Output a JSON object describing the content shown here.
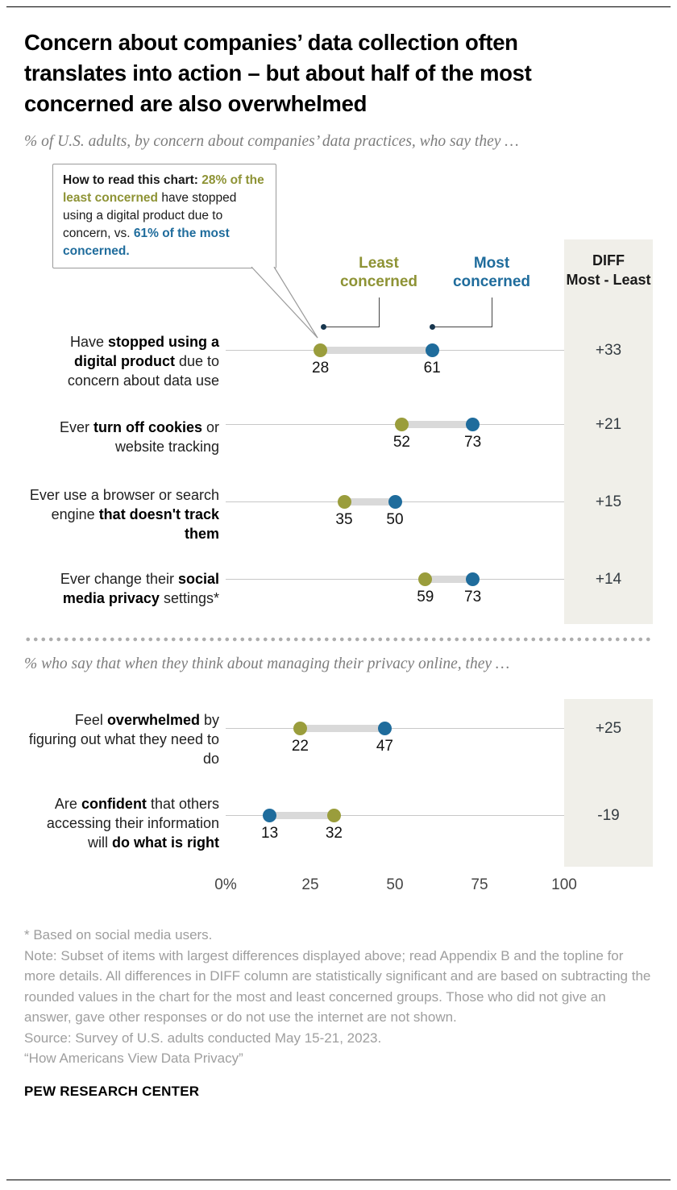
{
  "header": {
    "title_lines": [
      "Concern about companies’ data collection often",
      "translates into action – but about half of the most",
      "concerned are also overwhelmed"
    ],
    "subtitle": "% of U.S. adults, by concern about companies’ data practices, who say they …",
    "subtitle2": "% who say that when they think about managing their privacy online, they …"
  },
  "colors": {
    "least": "#9a9d3c",
    "least_text": "#8e9335",
    "most": "#1f6c9c",
    "connector": "#d9d9d9",
    "panel": "#f0efe9"
  },
  "callout": {
    "parts": [
      {
        "text": "How to read this chart: ",
        "style": "dark-bold"
      },
      {
        "text": "28% of the least concerned",
        "style": "least"
      },
      {
        "text": " have stopped using a digital product due to concern, vs. ",
        "style": "dark"
      },
      {
        "text": "61% of the most concerned.",
        "style": "most"
      }
    ]
  },
  "legend": {
    "least": "Least concerned",
    "most": "Most concerned"
  },
  "chart_data": {
    "type": "dumbbell",
    "unit": "%",
    "title": "Concern about companies’ data collection often translates into action – but about half of the most concerned are also overwhelmed",
    "series": [
      "Least concerned",
      "Most concerned"
    ],
    "diff_header": {
      "line1": "DIFF",
      "line2": "Most - Least"
    },
    "axis": {
      "min": 0,
      "max": 100,
      "ticks": [
        {
          "label": "0%",
          "value": 0
        },
        {
          "label": "25",
          "value": 25
        },
        {
          "label": "50",
          "value": 50
        },
        {
          "label": "75",
          "value": 75
        },
        {
          "label": "100",
          "value": 100
        }
      ]
    },
    "sections": [
      {
        "rows": [
          {
            "label_parts": [
              {
                "text": "Have "
              },
              {
                "text": "stopped using a digital product",
                "bold": true
              },
              {
                "text": " due to concern about data use"
              }
            ],
            "least": 28,
            "most": 61,
            "diff": "+33"
          },
          {
            "label_parts": [
              {
                "text": "Ever "
              },
              {
                "text": "turn off cookies",
                "bold": true
              },
              {
                "text": " or website tracking"
              }
            ],
            "least": 52,
            "most": 73,
            "diff": "+21"
          },
          {
            "label_parts": [
              {
                "text": "Ever use a browser or search engine "
              },
              {
                "text": "that doesn't track them",
                "bold": true
              }
            ],
            "least": 35,
            "most": 50,
            "diff": "+15"
          },
          {
            "label_parts": [
              {
                "text": "Ever change their "
              },
              {
                "text": "social media privacy",
                "bold": true
              },
              {
                "text": " settings*"
              }
            ],
            "least": 59,
            "most": 73,
            "diff": "+14"
          }
        ]
      },
      {
        "rows": [
          {
            "label_parts": [
              {
                "text": "Feel "
              },
              {
                "text": "overwhelmed",
                "bold": true
              },
              {
                "text": " by figuring out what they need to do"
              }
            ],
            "least": 22,
            "most": 47,
            "diff": "+25"
          },
          {
            "label_parts": [
              {
                "text": "Are "
              },
              {
                "text": "confident",
                "bold": true
              },
              {
                "text": " that others accessing their information will "
              },
              {
                "text": "do what is right",
                "bold": true
              }
            ],
            "least": 32,
            "most": 13,
            "diff": "-19"
          }
        ]
      }
    ]
  },
  "footnotes": [
    "* Based on social media users.",
    "Note: Subset of items with largest differences displayed above; read Appendix B and the topline for more details. All differences in DIFF column are statistically significant and are based on subtracting the rounded values in the chart for the most and least concerned groups. Those who did not give an answer, gave other responses or do not use the internet are not shown.",
    "Source: Survey of U.S. adults conducted May 15-21, 2023.",
    "“How Americans View Data Privacy”"
  ],
  "brand": "PEW RESEARCH CENTER"
}
